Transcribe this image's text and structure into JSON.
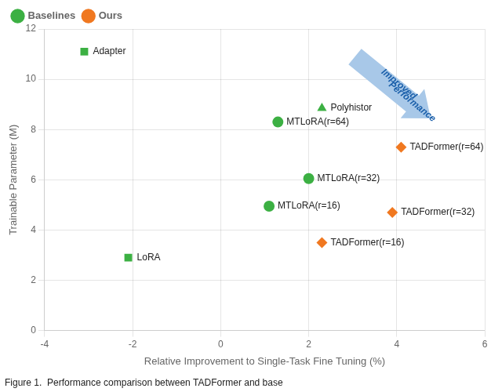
{
  "chart_data": {
    "type": "scatter",
    "xlabel": "Relative Improvement to Single-Task Fine Tuning (%)",
    "ylabel": "Trainable Parameter (M)",
    "caption": "Figure 1.  Performance comparison between TADFormer and base",
    "xlim": [
      -4,
      6
    ],
    "ylim": [
      0,
      12
    ],
    "xticks": [
      -4,
      -2,
      0,
      2,
      4,
      6
    ],
    "yticks": [
      0,
      2,
      4,
      6,
      8,
      10,
      12
    ],
    "grid": true,
    "legend": "upper left",
    "series": [
      {
        "name": "Baselines",
        "color": "#3cb043",
        "marker": "circle",
        "x": [
          1.3,
          2.0,
          1.1
        ],
        "values": [
          8.3,
          6.05,
          4.95
        ],
        "labels": [
          "MTLoRA(r=64)",
          "MTLoRA(r=32)",
          "MTLoRA(r=16)"
        ]
      },
      {
        "name": "Baselines",
        "color": "#3cb043",
        "marker": "square",
        "x": [
          -3.1,
          -2.1
        ],
        "values": [
          11.1,
          2.9
        ],
        "labels": [
          "Adapter",
          "LoRA"
        ]
      },
      {
        "name": "Baselines",
        "color": "#3cb043",
        "marker": "triangle",
        "x": [
          2.3
        ],
        "values": [
          8.85
        ],
        "labels": [
          "Polyhistor"
        ]
      },
      {
        "name": "Ours",
        "color": "#f07820",
        "marker": "diamond",
        "x": [
          4.1,
          3.9,
          2.3
        ],
        "values": [
          7.3,
          4.7,
          3.5
        ],
        "labels": [
          "TADFormer(r=64)",
          "TADFormer(r=32)",
          "TADFormer(r=16)"
        ]
      }
    ],
    "arrow": {
      "x": [
        3.05,
        4.772
      ],
      "y": [
        10.9,
        8.44
      ],
      "color": "#a8c8e8"
    },
    "annotations": [
      {
        "text": "Improved",
        "x": 4.05,
        "y": 9.8,
        "color": "#1a5faa"
      },
      {
        "text": "Performance",
        "x": 4.35,
        "y": 9.1,
        "color": "#1a5faa"
      }
    ]
  }
}
